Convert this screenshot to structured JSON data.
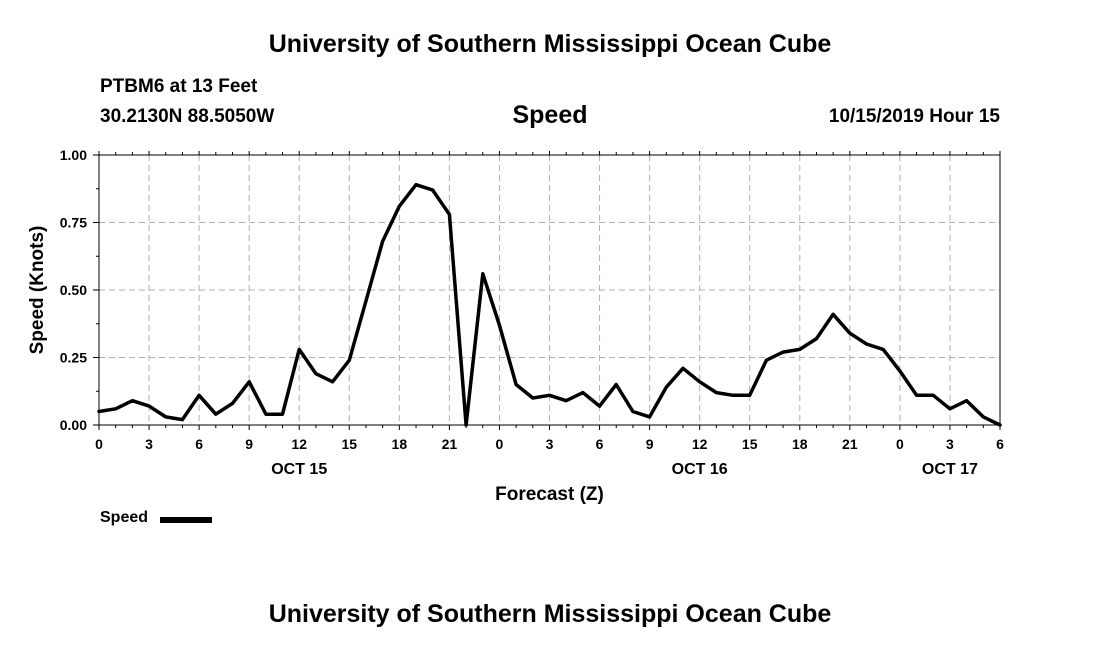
{
  "header": {
    "title": "University of Southern Mississippi Ocean Cube",
    "station": "PTBM6 at 13 Feet",
    "coordinates": "30.2130N 88.5050W",
    "variable": "Speed",
    "datetime": "10/15/2019 Hour 15"
  },
  "footer": {
    "title": "University of Southern Mississippi Ocean Cube"
  },
  "legend": {
    "label": "Speed",
    "color": "#000000"
  },
  "chart_data": {
    "type": "line",
    "xlabel": "Forecast (Z)",
    "ylabel": "Speed (Knots)",
    "xlim": [
      0,
      54
    ],
    "ylim": [
      0,
      1
    ],
    "x_ticks": [
      {
        "x": 0,
        "label": "0"
      },
      {
        "x": 3,
        "label": "3"
      },
      {
        "x": 6,
        "label": "6"
      },
      {
        "x": 9,
        "label": "9"
      },
      {
        "x": 12,
        "label": "12"
      },
      {
        "x": 15,
        "label": "15"
      },
      {
        "x": 18,
        "label": "18"
      },
      {
        "x": 21,
        "label": "21"
      },
      {
        "x": 24,
        "label": "0"
      },
      {
        "x": 27,
        "label": "3"
      },
      {
        "x": 30,
        "label": "6"
      },
      {
        "x": 33,
        "label": "9"
      },
      {
        "x": 36,
        "label": "12"
      },
      {
        "x": 39,
        "label": "15"
      },
      {
        "x": 42,
        "label": "18"
      },
      {
        "x": 45,
        "label": "21"
      },
      {
        "x": 48,
        "label": "0"
      },
      {
        "x": 51,
        "label": "3"
      },
      {
        "x": 54,
        "label": "6"
      }
    ],
    "y_ticks": [
      {
        "y": 0,
        "label": "0.00"
      },
      {
        "y": 0.25,
        "label": "0.25"
      },
      {
        "y": 0.5,
        "label": "0.50"
      },
      {
        "y": 0.75,
        "label": "0.75"
      },
      {
        "y": 1.0,
        "label": "1.00"
      }
    ],
    "date_labels": [
      {
        "x": 12,
        "label": "OCT 15"
      },
      {
        "x": 36,
        "label": "OCT 16"
      },
      {
        "x": 51,
        "label": "OCT 17"
      }
    ],
    "grid": true,
    "series": [
      {
        "name": "Speed",
        "color": "#000000",
        "x": [
          0,
          1,
          2,
          3,
          4,
          5,
          6,
          7,
          8,
          9,
          10,
          11,
          12,
          13,
          14,
          15,
          16,
          17,
          18,
          19,
          20,
          21,
          22,
          23,
          24,
          25,
          26,
          27,
          28,
          29,
          30,
          31,
          32,
          33,
          34,
          35,
          36,
          37,
          38,
          39,
          40,
          41,
          42,
          43,
          44,
          45,
          46,
          47,
          48,
          49,
          50,
          51,
          52,
          53,
          54
        ],
        "values": [
          0.05,
          0.06,
          0.09,
          0.07,
          0.03,
          0.02,
          0.11,
          0.04,
          0.08,
          0.16,
          0.04,
          0.04,
          0.28,
          0.19,
          0.16,
          0.24,
          0.46,
          0.68,
          0.81,
          0.89,
          0.87,
          0.78,
          0.0,
          0.56,
          0.37,
          0.15,
          0.1,
          0.11,
          0.09,
          0.12,
          0.07,
          0.15,
          0.05,
          0.03,
          0.14,
          0.21,
          0.16,
          0.12,
          0.11,
          0.11,
          0.24,
          0.27,
          0.28,
          0.32,
          0.41,
          0.34,
          0.3,
          0.28,
          0.2,
          0.11,
          0.11,
          0.06,
          0.09,
          0.03,
          0.0
        ]
      }
    ]
  }
}
